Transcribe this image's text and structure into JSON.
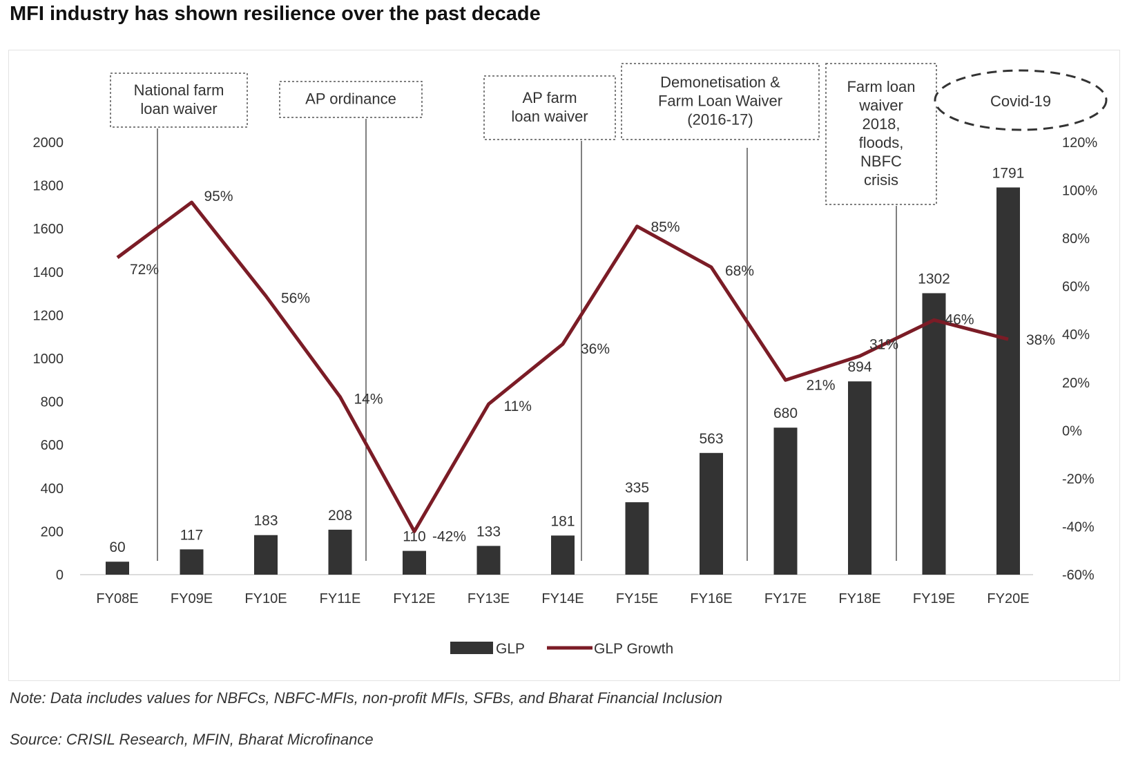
{
  "title": "MFI industry has shown resilience over the past decade",
  "note": "Note: Data includes values for NBFCs, NBFC-MFIs, non-profit MFIs, SFBs, and Bharat Financial Inclusion",
  "source": "Source: CRISIL Research, MFIN, Bharat Microfinance",
  "colors": {
    "bar": "#333333",
    "line": "#7b1c26",
    "annotation_border": "#555555"
  },
  "chart_data": {
    "type": "bar",
    "categories": [
      "FY08E",
      "FY09E",
      "FY10E",
      "FY11E",
      "FY12E",
      "FY13E",
      "FY14E",
      "FY15E",
      "FY16E",
      "FY17E",
      "FY18E",
      "FY19E",
      "FY20E"
    ],
    "series": [
      {
        "name": "GLP",
        "type": "bar",
        "axis": "left",
        "values": [
          60,
          117,
          183,
          208,
          110,
          133,
          181,
          335,
          563,
          680,
          894,
          1302,
          1791
        ],
        "labels": [
          "60",
          "117",
          "183",
          "208",
          "110",
          "133",
          "181",
          "335",
          "563",
          "680",
          "894",
          "1302",
          "1791"
        ]
      },
      {
        "name": "GLP Growth",
        "type": "line",
        "axis": "right",
        "values": [
          72,
          95,
          56,
          14,
          -42,
          11,
          36,
          85,
          68,
          21,
          31,
          46,
          38
        ],
        "labels": [
          "72%",
          "95%",
          "56%",
          "14%",
          "-42%",
          "11%",
          "36%",
          "85%",
          "68%",
          "21%",
          "31%",
          "46%",
          "38%"
        ]
      }
    ],
    "y_left": {
      "range": [
        0,
        2000
      ],
      "ticks": [
        "0",
        "200",
        "400",
        "600",
        "800",
        "1000",
        "1200",
        "1400",
        "1600",
        "1800",
        "2000"
      ]
    },
    "y_right": {
      "range": [
        -60,
        120
      ],
      "ticks": [
        "-60%",
        "-40%",
        "-20%",
        "0%",
        "20%",
        "40%",
        "60%",
        "80%",
        "100%",
        "120%"
      ]
    },
    "legend": {
      "position": "bottom",
      "entries": [
        "GLP",
        "GLP Growth"
      ]
    },
    "grid": false,
    "annotations": [
      {
        "id": "national",
        "lines": [
          "National farm",
          "loan waiver"
        ],
        "style": "dotted-box",
        "marker_between": [
          "FY08E",
          "FY09E"
        ]
      },
      {
        "id": "ap-ord",
        "lines": [
          "AP ordinance"
        ],
        "style": "dotted-box",
        "marker_between": [
          "FY11E",
          "FY12E"
        ]
      },
      {
        "id": "ap-farm",
        "lines": [
          "AP farm",
          "loan waiver"
        ],
        "style": "dotted-box",
        "marker_between": [
          "FY14E",
          "FY15E"
        ]
      },
      {
        "id": "demon",
        "lines": [
          "Demonetisation &",
          "Farm Loan Waiver",
          "(2016-17)"
        ],
        "style": "dotted-box",
        "marker_between": [
          "FY16E",
          "FY17E"
        ]
      },
      {
        "id": "farm2018",
        "lines": [
          "Farm loan",
          "waiver",
          "2018,",
          "floods,",
          "NBFC",
          "crisis"
        ],
        "style": "dotted-box",
        "marker_between": [
          "FY18E",
          "FY19E"
        ]
      },
      {
        "id": "covid",
        "lines": [
          "Covid-19"
        ],
        "style": "dashed-ellipse"
      }
    ]
  }
}
